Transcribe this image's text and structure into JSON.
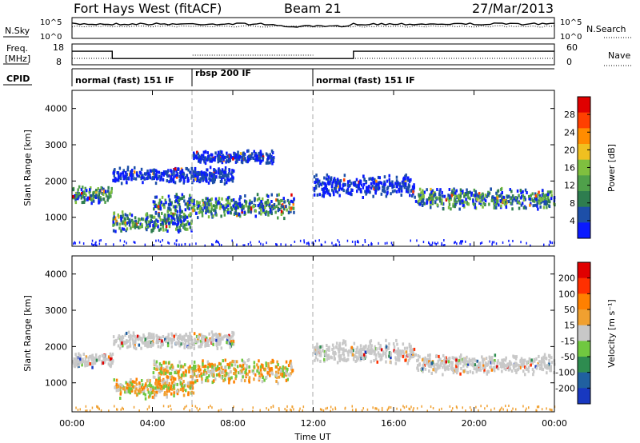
{
  "header": {
    "station": "Fort Hays West (fitACF)",
    "beam": "Beam 21",
    "date": "27/Mar/2013"
  },
  "status_panels": {
    "nsky_label": "N.Sky",
    "nsky_ticks": [
      "10^5",
      "10^0"
    ],
    "nsearch_label": "N.Search",
    "nsearch_ticks": [
      "10^5",
      "10^0"
    ],
    "freq_label": "Freq.",
    "freq_unit": "[MHz]",
    "freq_ticks": [
      "18",
      "8"
    ],
    "nave_label": "Nave",
    "nave_ticks": [
      "60",
      "0"
    ],
    "cpid_label": "CPID",
    "cpid_segments": [
      {
        "label": "normal (fast) 151 IF",
        "start_h": 0,
        "end_h": 6
      },
      {
        "label": "rbsp 200 IF",
        "start_h": 6,
        "end_h": 12
      },
      {
        "label": "normal (fast) 151 IF",
        "start_h": 12,
        "end_h": 24
      }
    ],
    "freq_trace": [
      [
        0,
        14.5
      ],
      [
        2,
        14.5
      ],
      [
        2,
        11
      ],
      [
        14,
        11
      ],
      [
        14,
        14.5
      ],
      [
        24,
        14.5
      ]
    ]
  },
  "chart_data": [
    {
      "type": "heatmap",
      "name": "power",
      "ylabel": "Slant Range [km]",
      "xlim_hours": [
        0,
        24
      ],
      "ylim": [
        200,
        4500
      ],
      "x_ticks": [
        "00:00",
        "04:00",
        "08:00",
        "12:00",
        "16:00",
        "20:00",
        "00:00"
      ],
      "y_ticks": [
        "1000",
        "2000",
        "3000",
        "4000"
      ],
      "colorbar_label": "Power [dB]",
      "colorbar_ticks": [
        "28",
        "24",
        "20",
        "16",
        "12",
        "8",
        "4"
      ],
      "colorbar_colors": [
        "#0a1aff",
        "#1d4fa8",
        "#2e7d4f",
        "#4fa04a",
        "#7fbf3f",
        "#f0c020",
        "#ff8c00",
        "#ff4000",
        "#e00000"
      ],
      "scatter_bands": [
        {
          "from_h": 0,
          "to_h": 2,
          "center_km": 1650,
          "half_width_km": 250,
          "dominant": "mixed"
        },
        {
          "from_h": 2,
          "to_h": 6,
          "center_km": 900,
          "half_width_km": 300,
          "dominant": "mixed"
        },
        {
          "from_h": 4,
          "to_h": 11,
          "center_km": 1350,
          "half_width_km": 350,
          "dominant": "mixed"
        },
        {
          "from_h": 2,
          "to_h": 8,
          "center_km": 2200,
          "half_width_km": 250,
          "dominant": "blue"
        },
        {
          "from_h": 6,
          "to_h": 10,
          "center_km": 2700,
          "half_width_km": 200,
          "dominant": "blue"
        },
        {
          "from_h": 12,
          "to_h": 17,
          "center_km": 1900,
          "half_width_km": 350,
          "dominant": "blue"
        },
        {
          "from_h": 17,
          "to_h": 24,
          "center_km": 1550,
          "half_width_km": 300,
          "dominant": "mixed"
        }
      ]
    },
    {
      "type": "heatmap",
      "name": "velocity",
      "ylabel": "Slant Range [km]",
      "xlabel": "Time UT",
      "xlim_hours": [
        0,
        24
      ],
      "ylim": [
        200,
        4500
      ],
      "x_ticks": [
        "00:00",
        "04:00",
        "08:00",
        "12:00",
        "16:00",
        "20:00",
        "00:00"
      ],
      "y_ticks": [
        "1000",
        "2000",
        "3000",
        "4000"
      ],
      "colorbar_label": "Velocity [m s⁻¹]",
      "colorbar_ticks": [
        "200",
        "100",
        "50",
        "15",
        "-15",
        "-50",
        "-100",
        "-200"
      ],
      "colorbar_colors": [
        "#1838c0",
        "#2060a0",
        "#2e8c50",
        "#70c840",
        "#c8c8c8",
        "#f0a030",
        "#ff8000",
        "#ff3000",
        "#e00000"
      ],
      "scatter_bands": [
        {
          "from_h": 0,
          "to_h": 2,
          "center_km": 1650,
          "half_width_km": 250,
          "dominant": "grey"
        },
        {
          "from_h": 2,
          "to_h": 6,
          "center_km": 900,
          "half_width_km": 300,
          "dominant": "orange-green"
        },
        {
          "from_h": 4,
          "to_h": 11,
          "center_km": 1350,
          "half_width_km": 350,
          "dominant": "orange-green"
        },
        {
          "from_h": 2,
          "to_h": 8,
          "center_km": 2200,
          "half_width_km": 250,
          "dominant": "grey"
        },
        {
          "from_h": 12,
          "to_h": 17,
          "center_km": 1900,
          "half_width_km": 350,
          "dominant": "grey"
        },
        {
          "from_h": 17,
          "to_h": 24,
          "center_km": 1550,
          "half_width_km": 300,
          "dominant": "grey"
        }
      ]
    }
  ]
}
